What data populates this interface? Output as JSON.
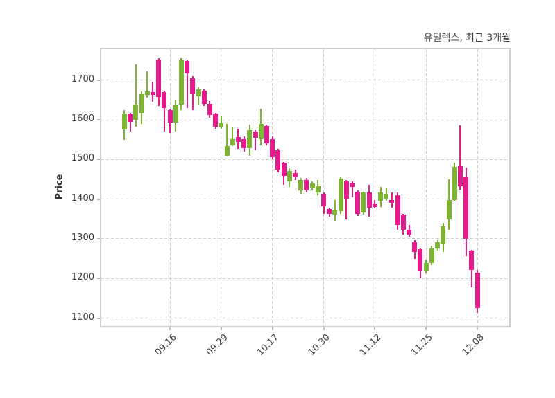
{
  "figure": {
    "title": "유틸렉스, 최근 3개월",
    "background": "#ffffff"
  },
  "chart_data": {
    "type": "candlestick",
    "title": "유틸렉스, 최근 3개월",
    "xlabel": "",
    "ylabel": "Price",
    "ylim": [
      1080,
      1778
    ],
    "yticks": [
      1700,
      1600,
      1500,
      1400,
      1300,
      1200,
      1100
    ],
    "grid": "dashed-both-axes",
    "legend": "none",
    "num_candles": 63,
    "xtick_labels": [
      "09.16",
      "09.29",
      "10.17",
      "10.30",
      "11.12",
      "11.25",
      "12.08"
    ],
    "xtick_candle_indices": [
      8,
      17,
      26,
      35,
      44,
      53,
      62
    ],
    "ohlc_note": "each candle is [open, high, low, close]; close>=open renders green (up), close<open renders pink (down)",
    "candles_ohlc": [
      [
        1575,
        1625,
        1550,
        1615
      ],
      [
        1615,
        1618,
        1570,
        1595
      ],
      [
        1600,
        1740,
        1583,
        1638
      ],
      [
        1618,
        1671,
        1590,
        1665
      ],
      [
        1662,
        1722,
        1655,
        1671
      ],
      [
        1670,
        1696,
        1645,
        1662
      ],
      [
        1752,
        1755,
        1635,
        1658
      ],
      [
        1670,
        1673,
        1570,
        1630
      ],
      [
        1625,
        1627,
        1567,
        1593
      ],
      [
        1593,
        1651,
        1570,
        1636
      ],
      [
        1639,
        1755,
        1625,
        1750
      ],
      [
        1749,
        1750,
        1630,
        1717
      ],
      [
        1705,
        1710,
        1625,
        1665
      ],
      [
        1659,
        1682,
        1636,
        1677
      ],
      [
        1674,
        1676,
        1635,
        1640
      ],
      [
        1641,
        1647,
        1606,
        1612
      ],
      [
        1616,
        1618,
        1577,
        1583
      ],
      [
        1583,
        1609,
        1577,
        1591
      ],
      [
        1510,
        1589,
        1507,
        1534
      ],
      [
        1536,
        1580,
        1533,
        1551
      ],
      [
        1557,
        1578,
        1526,
        1545
      ],
      [
        1552,
        1558,
        1520,
        1529
      ],
      [
        1529,
        1587,
        1510,
        1573
      ],
      [
        1570,
        1573,
        1523,
        1555
      ],
      [
        1552,
        1628,
        1535,
        1590
      ],
      [
        1585,
        1587,
        1535,
        1541
      ],
      [
        1552,
        1558,
        1500,
        1506
      ],
      [
        1523,
        1526,
        1468,
        1474
      ],
      [
        1491,
        1493,
        1436,
        1459
      ],
      [
        1445,
        1477,
        1430,
        1471
      ],
      [
        1465,
        1474,
        1448,
        1456
      ],
      [
        1422,
        1453,
        1413,
        1448
      ],
      [
        1448,
        1453,
        1416,
        1424
      ],
      [
        1427,
        1445,
        1422,
        1439
      ],
      [
        1416,
        1448,
        1410,
        1433
      ],
      [
        1413,
        1416,
        1363,
        1381
      ],
      [
        1375,
        1377,
        1355,
        1363
      ],
      [
        1361,
        1398,
        1343,
        1372
      ],
      [
        1369,
        1456,
        1363,
        1451
      ],
      [
        1445,
        1448,
        1349,
        1401
      ],
      [
        1442,
        1444,
        1404,
        1430
      ],
      [
        1419,
        1422,
        1358,
        1363
      ],
      [
        1366,
        1419,
        1361,
        1416
      ],
      [
        1416,
        1436,
        1355,
        1378
      ],
      [
        1387,
        1398,
        1378,
        1380
      ],
      [
        1395,
        1430,
        1381,
        1416
      ],
      [
        1401,
        1428,
        1395,
        1413
      ],
      [
        1398,
        1416,
        1378,
        1390
      ],
      [
        1410,
        1416,
        1323,
        1334
      ],
      [
        1361,
        1363,
        1311,
        1323
      ],
      [
        1323,
        1334,
        1305,
        1311
      ],
      [
        1291,
        1297,
        1250,
        1267
      ],
      [
        1273,
        1275,
        1201,
        1218
      ],
      [
        1218,
        1247,
        1212,
        1238
      ],
      [
        1238,
        1282,
        1233,
        1276
      ],
      [
        1276,
        1297,
        1270,
        1291
      ],
      [
        1288,
        1340,
        1267,
        1331
      ],
      [
        1349,
        1450,
        1323,
        1398
      ],
      [
        1398,
        1492,
        1395,
        1481
      ],
      [
        1483,
        1586,
        1424,
        1433
      ],
      [
        1455,
        1480,
        1256,
        1300
      ],
      [
        1270,
        1272,
        1177,
        1221
      ],
      [
        1215,
        1221,
        1113,
        1125
      ]
    ],
    "colors": {
      "up": "#7cb332",
      "down": "#e51a8c",
      "grid": "#cdcdcd",
      "spine": "#d0d0d0",
      "text": "#3d3d3d",
      "tick_mark": "#b5b5b5"
    }
  }
}
